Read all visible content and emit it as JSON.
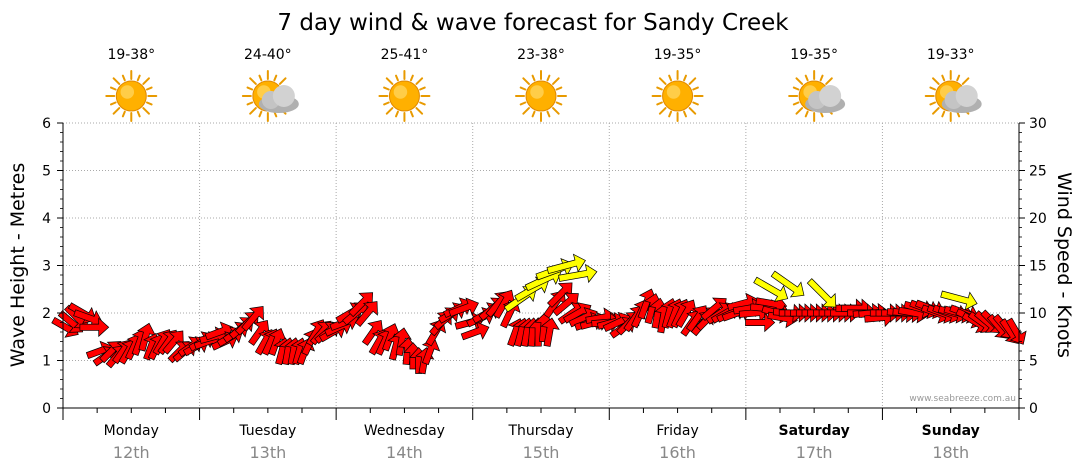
{
  "title": "7 day wind & wave forecast for Sandy Creek",
  "watermark": "www.seabreeze.com.au",
  "colors": {
    "wind_arrow": "#ff0000",
    "gust_arrow": "#ffff00",
    "grid": "#aaaaaa",
    "sun": "#ffb000",
    "cloud": "#b0b0b0"
  },
  "days": [
    {
      "name": "Monday",
      "date": "12th",
      "temp": "19-38°",
      "icon": "sun-icon",
      "bold": false
    },
    {
      "name": "Tuesday",
      "date": "13th",
      "temp": "24-40°",
      "icon": "sun-cloud-icon",
      "bold": false
    },
    {
      "name": "Wednesday",
      "date": "14th",
      "temp": "25-41°",
      "icon": "sun-icon",
      "bold": false
    },
    {
      "name": "Thursday",
      "date": "15th",
      "temp": "23-38°",
      "icon": "sun-icon",
      "bold": false
    },
    {
      "name": "Friday",
      "date": "16th",
      "temp": "19-35°",
      "icon": "sun-icon",
      "bold": false
    },
    {
      "name": "Saturday",
      "date": "17th",
      "temp": "19-35°",
      "icon": "sun-cloud-icon",
      "bold": true
    },
    {
      "name": "Sunday",
      "date": "18th",
      "temp": "19-33°",
      "icon": "sun-cloud-icon",
      "bold": true
    }
  ],
  "chart_data": {
    "type": "scatter",
    "title": "7 day wind & wave forecast for Sandy Creek",
    "y_left": {
      "label": "Wave Height - Metres",
      "min": 0,
      "max": 6,
      "ticks": [
        "0",
        "1",
        "2",
        "3",
        "4",
        "5",
        "6"
      ]
    },
    "y_right": {
      "label": "Wind Speed - Knots",
      "min": 0,
      "max": 30,
      "ticks": [
        "0",
        "5",
        "10",
        "15",
        "20",
        "25",
        "30"
      ]
    },
    "x": {
      "categories": [
        "Monday 12th",
        "Tuesday 13th",
        "Wednesday 14th",
        "Thursday 15th",
        "Friday 16th",
        "Saturday 17th",
        "Sunday 18th"
      ],
      "points_per_day": 24
    },
    "grid": true,
    "series": [
      {
        "kind": "wind",
        "color": "#ff0000",
        "speeds_knots": [
          8.5,
          9,
          9.5,
          10,
          9.5,
          8.5,
          6,
          5.5,
          6,
          5.5,
          6,
          6,
          6.5,
          7,
          7.5,
          6.5,
          6.5,
          7,
          7,
          7,
          6,
          6,
          6.5,
          6.5,
          7,
          7,
          7.5,
          8,
          7,
          7.5,
          8,
          8.5,
          9,
          9.5,
          8,
          7,
          7,
          7,
          6,
          6,
          6,
          6,
          6,
          7,
          8,
          8,
          8,
          8,
          8.5,
          9,
          10,
          10,
          11,
          10,
          8,
          7,
          7,
          7.5,
          6.5,
          7,
          6,
          5.5,
          5,
          5,
          6,
          8,
          9,
          9.5,
          10,
          10.5,
          10.5,
          9,
          8,
          9.5,
          10,
          10.5,
          11,
          11,
          10,
          8,
          8,
          8,
          8,
          8,
          8.5,
          8,
          11,
          12,
          11,
          10,
          10,
          9.5,
          9,
          9,
          9.5,
          9,
          9,
          9,
          8.5,
          9,
          9.5,
          10,
          11,
          10.5,
          10,
          9.5,
          10,
          10,
          10,
          10,
          9,
          9.5,
          9,
          9.5,
          10.5,
          10,
          10,
          10,
          10,
          11,
          10.5,
          10,
          9,
          10.5,
          11,
          10,
          9.5,
          10,
          10,
          10,
          10,
          10,
          10,
          10,
          10,
          10,
          10,
          10,
          10.5,
          10.5,
          10,
          10,
          10,
          9.5,
          10,
          10,
          10,
          10,
          10,
          10,
          10.5,
          10.5,
          10.5,
          10,
          10,
          10,
          10,
          10,
          10,
          9.5,
          9,
          9,
          9,
          9,
          8.5,
          8.5,
          8,
          8
        ],
        "directions_deg": [
          300,
          310,
          315,
          300,
          290,
          270,
          250,
          235,
          225,
          220,
          215,
          210,
          205,
          200,
          195,
          200,
          205,
          210,
          215,
          220,
          225,
          230,
          235,
          240,
          240,
          250,
          255,
          250,
          245,
          240,
          235,
          230,
          225,
          220,
          215,
          210,
          205,
          200,
          195,
          190,
          190,
          195,
          200,
          205,
          210,
          220,
          230,
          240,
          245,
          250,
          240,
          230,
          225,
          220,
          215,
          210,
          205,
          200,
          195,
          190,
          185,
          180,
          180,
          190,
          200,
          210,
          220,
          230,
          240,
          245,
          250,
          255,
          250,
          245,
          240,
          230,
          220,
          210,
          205,
          200,
          195,
          190,
          185,
          180,
          185,
          190,
          215,
          225,
          230,
          235,
          240,
          245,
          250,
          255,
          260,
          265,
          255,
          245,
          235,
          225,
          215,
          205,
          200,
          195,
          190,
          190,
          195,
          200,
          205,
          210,
          215,
          215,
          220,
          225,
          230,
          235,
          240,
          245,
          250,
          255,
          260,
          265,
          270,
          275,
          280,
          285,
          280,
          275,
          270,
          270,
          270,
          270,
          270,
          270,
          270,
          270,
          270,
          270,
          270,
          270,
          270,
          265,
          265,
          265,
          270,
          270,
          270,
          275,
          275,
          280,
          285,
          290,
          290,
          290,
          290,
          290,
          285,
          285,
          290,
          295,
          300,
          305,
          310,
          315,
          320,
          320,
          325,
          330
        ]
      },
      {
        "kind": "gust",
        "color": "#ffff00",
        "points": [
          {
            "x": 80,
            "speed_knots": 11.5,
            "direction_deg": 235
          },
          {
            "x": 82,
            "speed_knots": 12.5,
            "direction_deg": 240
          },
          {
            "x": 84,
            "speed_knots": 13.5,
            "direction_deg": 245
          },
          {
            "x": 86,
            "speed_knots": 14.5,
            "direction_deg": 250
          },
          {
            "x": 88,
            "speed_knots": 15,
            "direction_deg": 255
          },
          {
            "x": 90,
            "speed_knots": 14,
            "direction_deg": 260
          },
          {
            "x": 124,
            "speed_knots": 12.5,
            "direction_deg": 300
          },
          {
            "x": 127,
            "speed_knots": 13,
            "direction_deg": 305
          },
          {
            "x": 133,
            "speed_knots": 12,
            "direction_deg": 315
          },
          {
            "x": 157,
            "speed_knots": 11.5,
            "direction_deg": 285
          }
        ]
      }
    ]
  }
}
